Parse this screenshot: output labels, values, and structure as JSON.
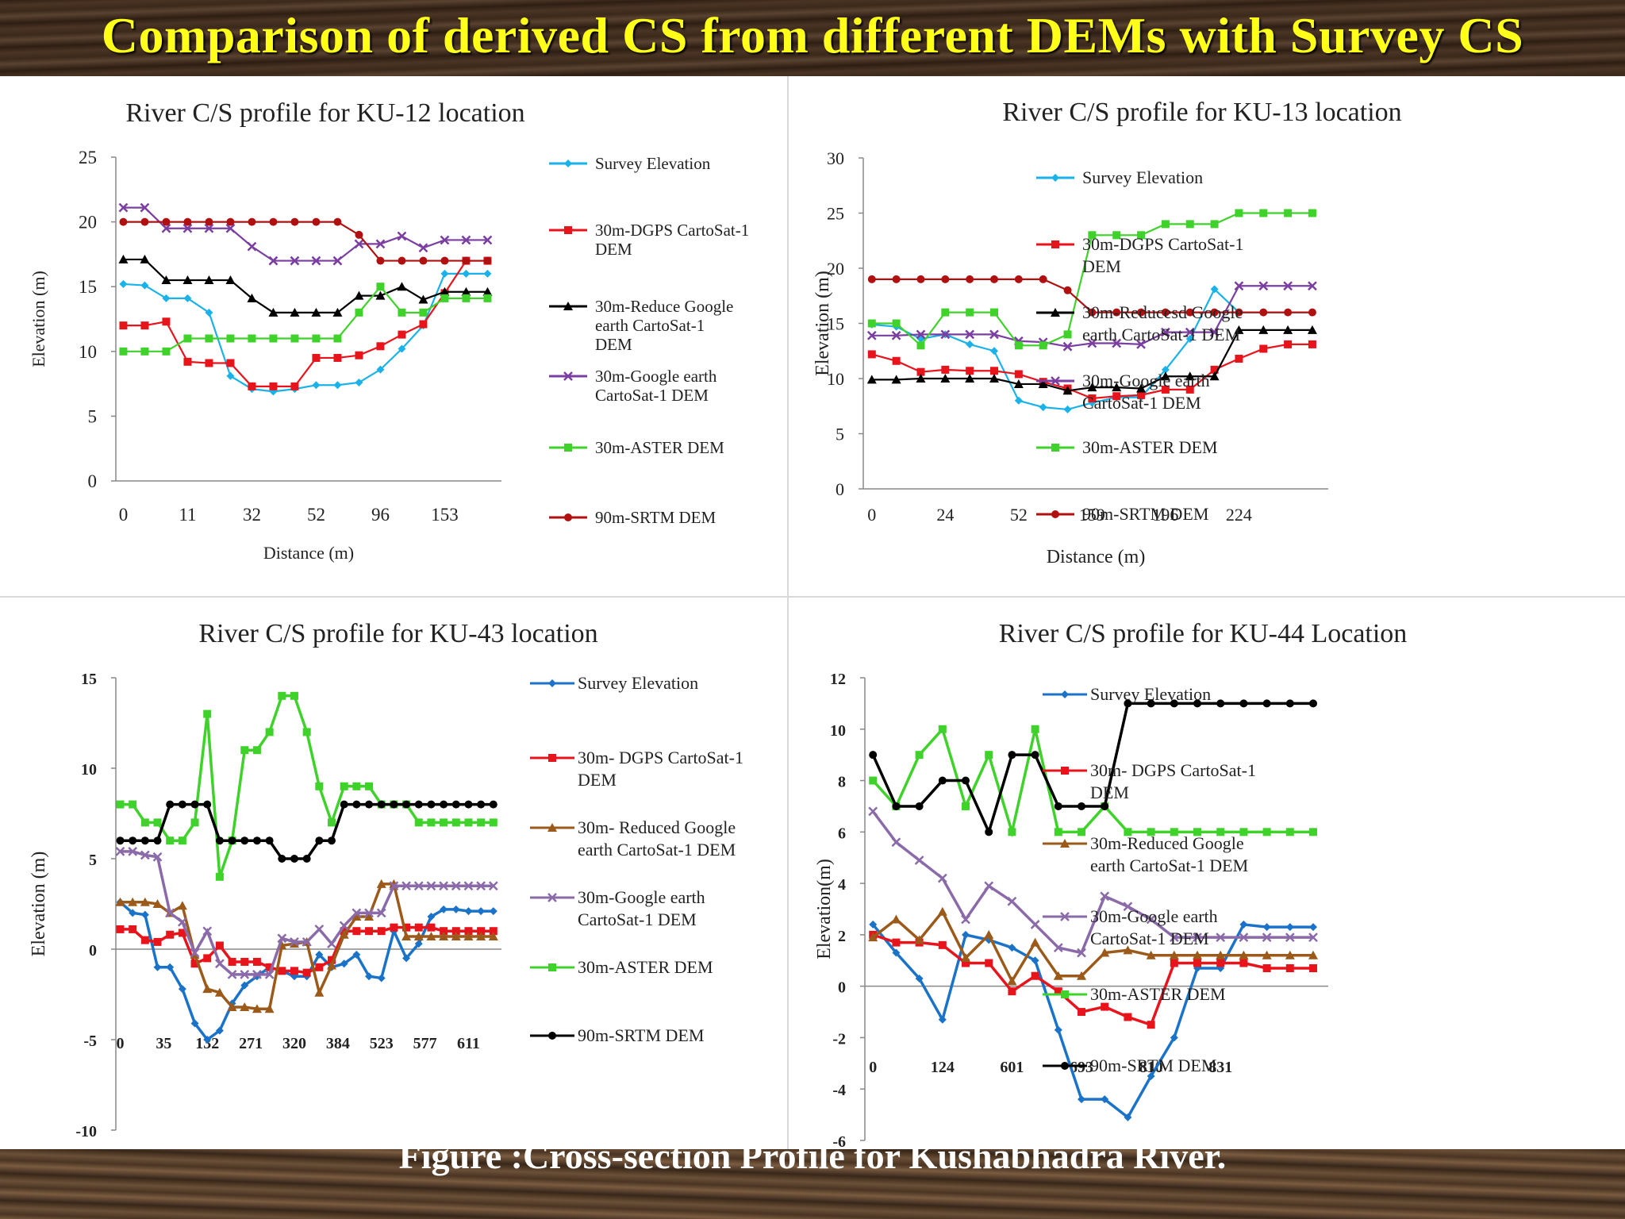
{
  "slide_title": "Comparison of derived CS from different DEMs with Survey CS",
  "caption": "Figure :Cross-section Profile  for Kushabhadra River.",
  "colors": {
    "title": "#ffff1a",
    "background": "#3a2a1e"
  },
  "chart_data": [
    {
      "type": "line",
      "title": "River C/S profile for KU-12 location",
      "xlabel": "Distance (m)",
      "ylabel": "Elevation (m)",
      "ylim": [
        0,
        25
      ],
      "yticks": [
        0,
        5,
        10,
        15,
        20,
        25
      ],
      "n_points": 18,
      "x_tick_labels": [
        {
          "i": 0,
          "label": "0"
        },
        {
          "i": 3,
          "label": "11"
        },
        {
          "i": 6,
          "label": "32"
        },
        {
          "i": 9,
          "label": "52"
        },
        {
          "i": 12,
          "label": "96"
        },
        {
          "i": 15,
          "label": "153"
        }
      ],
      "grid": false,
      "legend_position": "right",
      "series": [
        {
          "name": "Survey Elevation",
          "color": "#1ab2e8",
          "marker": "diamond",
          "values": [
            15.2,
            15.1,
            14.1,
            14.1,
            13.0,
            8.1,
            7.1,
            6.9,
            7.1,
            7.4,
            7.4,
            7.6,
            8.6,
            10.2,
            12.0,
            16.0,
            16.0,
            16.0
          ]
        },
        {
          "name": "30m-DGPS CartoSat-1 DEM",
          "color": "#e8141c",
          "marker": "square",
          "values": [
            12.0,
            12.0,
            12.3,
            9.2,
            9.1,
            9.1,
            7.3,
            7.3,
            7.3,
            9.5,
            9.5,
            9.7,
            10.4,
            11.3,
            12.1,
            14.5,
            17.0,
            17.0
          ]
        },
        {
          "name": "30m-Reduce Google earth CartoSat-1 DEM",
          "color": "#000000",
          "marker": "triangle",
          "values": [
            17.1,
            17.1,
            15.5,
            15.5,
            15.5,
            15.5,
            14.1,
            13.0,
            13.0,
            13.0,
            13.0,
            14.3,
            14.3,
            15.0,
            14.0,
            14.6,
            14.6,
            14.6
          ]
        },
        {
          "name": "30m-Google earth CartoSat-1 DEM",
          "color": "#7a3fa0",
          "marker": "x",
          "values": [
            21.1,
            21.1,
            19.5,
            19.5,
            19.5,
            19.5,
            18.1,
            17.0,
            17.0,
            17.0,
            17.0,
            18.3,
            18.3,
            18.9,
            18.0,
            18.6,
            18.6,
            18.6
          ]
        },
        {
          "name": "30m-ASTER DEM",
          "color": "#3fd22a",
          "marker": "square",
          "values": [
            10.0,
            10.0,
            10.0,
            11.0,
            11.0,
            11.0,
            11.0,
            11.0,
            11.0,
            11.0,
            11.0,
            13.0,
            15.0,
            13.0,
            13.0,
            14.1,
            14.1,
            14.1
          ]
        },
        {
          "name": "90m-SRTM DEM",
          "color": "#b01010",
          "marker": "circle",
          "values": [
            20.0,
            20.0,
            20.0,
            20.0,
            20.0,
            20.0,
            20.0,
            20.0,
            20.0,
            20.0,
            20.0,
            19.0,
            17.0,
            17.0,
            17.0,
            17.0,
            17.0,
            17.0
          ]
        }
      ]
    },
    {
      "type": "line",
      "title": "River C/S profile for KU-13 location",
      "xlabel": "Distance (m)",
      "ylabel": "Elevation (m)",
      "ylim": [
        0,
        30
      ],
      "yticks": [
        0,
        5,
        10,
        15,
        20,
        25,
        30
      ],
      "n_points": 19,
      "x_tick_labels": [
        {
          "i": 0,
          "label": "0"
        },
        {
          "i": 3,
          "label": "24"
        },
        {
          "i": 6,
          "label": "52"
        },
        {
          "i": 9,
          "label": "159"
        },
        {
          "i": 12,
          "label": "196"
        },
        {
          "i": 15,
          "label": "224"
        }
      ],
      "grid": false,
      "legend_position": "right",
      "series": [
        {
          "name": "Survey Elevation",
          "color": "#1ab2e8",
          "marker": "diamond",
          "values": [
            14.9,
            14.7,
            13.6,
            14.0,
            13.1,
            12.5,
            8.0,
            7.4,
            7.2,
            7.8,
            8.3,
            8.3,
            10.8,
            13.6,
            18.1,
            16.0,
            16.0,
            16.0,
            16.0
          ]
        },
        {
          "name": "30m-DGPS CartoSat-1 DEM",
          "color": "#e8141c",
          "marker": "square",
          "values": [
            12.2,
            11.6,
            10.6,
            10.8,
            10.7,
            10.7,
            10.4,
            9.7,
            9.1,
            8.2,
            8.4,
            8.5,
            9.0,
            9.0,
            10.8,
            11.8,
            12.7,
            13.1,
            13.1
          ]
        },
        {
          "name": "30m-Reducesd Google earth CartoSat-1 DEM",
          "color": "#000000",
          "marker": "triangle",
          "values": [
            9.9,
            9.9,
            10.0,
            10.0,
            10.0,
            10.0,
            9.5,
            9.5,
            8.9,
            9.2,
            9.2,
            9.1,
            10.2,
            10.2,
            10.2,
            14.4,
            14.4,
            14.4,
            14.4
          ]
        },
        {
          "name": "30m-Google earth CartoSat-1 DEM",
          "color": "#7a3fa0",
          "marker": "x",
          "values": [
            13.9,
            13.9,
            14.0,
            14.0,
            14.0,
            14.0,
            13.4,
            13.3,
            12.9,
            13.2,
            13.2,
            13.1,
            14.2,
            14.2,
            14.2,
            18.4,
            18.4,
            18.4,
            18.4
          ]
        },
        {
          "name": "30m-ASTER DEM",
          "color": "#3fd22a",
          "marker": "square",
          "values": [
            15.0,
            15.0,
            13.0,
            16.0,
            16.0,
            16.0,
            13.0,
            13.0,
            14.0,
            23.0,
            23.0,
            23.0,
            24.0,
            24.0,
            24.0,
            25.0,
            25.0,
            25.0,
            25.0
          ]
        },
        {
          "name": "90m-SRTM DEM",
          "color": "#b01010",
          "marker": "circle",
          "values": [
            19.0,
            19.0,
            19.0,
            19.0,
            19.0,
            19.0,
            19.0,
            19.0,
            18.0,
            16.0,
            16.0,
            16.0,
            16.0,
            16.0,
            16.0,
            16.0,
            16.0,
            16.0,
            16.0
          ]
        }
      ]
    },
    {
      "type": "line",
      "title": "River C/S profile for KU-43 location",
      "xlabel": "",
      "ylabel": "Elevation (m)",
      "ylim": [
        -10,
        15
      ],
      "yticks": [
        -10,
        -5,
        0,
        5,
        10,
        15
      ],
      "n_points": 31,
      "x_tick_labels": [
        {
          "i": 0,
          "label": "0"
        },
        {
          "i": 3.5,
          "label": "35"
        },
        {
          "i": 7,
          "label": "132"
        },
        {
          "i": 10.5,
          "label": "271"
        },
        {
          "i": 14,
          "label": "320"
        },
        {
          "i": 17.5,
          "label": "384"
        },
        {
          "i": 21,
          "label": "523"
        },
        {
          "i": 24.5,
          "label": "577"
        },
        {
          "i": 28,
          "label": "611"
        }
      ],
      "grid": false,
      "legend_position": "right",
      "series": [
        {
          "name": "Survey Elevation",
          "color": "#1a73c8",
          "marker": "diamond",
          "values": [
            2.6,
            2.0,
            1.9,
            -1.0,
            -1.0,
            -2.2,
            -4.1,
            -5.0,
            -4.5,
            -3.0,
            -2.0,
            -1.5,
            -1.0,
            -1.2,
            -1.5,
            -1.5,
            -0.3,
            -1.0,
            -0.8,
            -0.3,
            -1.5,
            -1.6,
            1.0,
            -0.5,
            0.3,
            1.8,
            2.2,
            2.2,
            2.1,
            2.1,
            2.1
          ]
        },
        {
          "name": "30m- DGPS CartoSat-1 DEM",
          "color": "#e8141c",
          "marker": "square",
          "values": [
            1.1,
            1.1,
            0.5,
            0.4,
            0.8,
            0.9,
            -0.8,
            -0.5,
            0.2,
            -0.7,
            -0.7,
            -0.7,
            -1.0,
            -1.2,
            -1.2,
            -1.3,
            -1.0,
            -0.6,
            1.0,
            1.0,
            1.0,
            1.0,
            1.2,
            1.2,
            1.2,
            1.2,
            1.0,
            1.0,
            1.0,
            1.0,
            1.0
          ]
        },
        {
          "name": "30m- Reduced Google earth CartoSat-1 DEM",
          "color": "#9c5a1a",
          "marker": "triangle",
          "values": [
            2.6,
            2.6,
            2.6,
            2.5,
            2.0,
            2.4,
            -0.3,
            -2.2,
            -2.4,
            -3.2,
            -3.2,
            -3.3,
            -3.3,
            0.2,
            0.3,
            0.4,
            -2.4,
            -0.9,
            0.8,
            1.8,
            1.8,
            3.6,
            3.6,
            0.7,
            0.7,
            0.7,
            0.7,
            0.7,
            0.7,
            0.7,
            0.7
          ]
        },
        {
          "name": "30m-Google earth CartoSat-1 DEM",
          "color": "#8a6aa8",
          "marker": "x",
          "values": [
            5.4,
            5.4,
            5.2,
            5.1,
            2.0,
            1.5,
            -0.2,
            1.0,
            -0.8,
            -1.4,
            -1.4,
            -1.4,
            -1.4,
            0.6,
            0.4,
            0.4,
            1.1,
            0.3,
            1.3,
            2.0,
            2.0,
            2.0,
            3.5,
            3.5,
            3.5,
            3.5,
            3.5,
            3.5,
            3.5,
            3.5,
            3.5
          ]
        },
        {
          "name": "30m-ASTER DEM",
          "color": "#3fd22a",
          "marker": "square",
          "values": [
            8.0,
            8.0,
            7.0,
            7.0,
            6.0,
            6.0,
            7.0,
            13.0,
            4.0,
            6.0,
            11.0,
            11.0,
            12.0,
            14.0,
            14.0,
            12.0,
            9.0,
            7.0,
            9.0,
            9.0,
            9.0,
            8.0,
            8.0,
            8.0,
            7.0,
            7.0,
            7.0,
            7.0,
            7.0,
            7.0,
            7.0
          ]
        },
        {
          "name": "90m-SRTM DEM",
          "color": "#000000",
          "marker": "circle",
          "values": [
            6.0,
            6.0,
            6.0,
            6.0,
            8.0,
            8.0,
            8.0,
            8.0,
            6.0,
            6.0,
            6.0,
            6.0,
            6.0,
            5.0,
            5.0,
            5.0,
            6.0,
            6.0,
            8.0,
            8.0,
            8.0,
            8.0,
            8.0,
            8.0,
            8.0,
            8.0,
            8.0,
            8.0,
            8.0,
            8.0,
            8.0
          ]
        }
      ]
    },
    {
      "type": "line",
      "title": "River C/S profile for KU-44 Location",
      "xlabel": "",
      "ylabel": "Elevation(m)",
      "ylim": [
        -6,
        12
      ],
      "yticks": [
        -6,
        -4,
        -2,
        0,
        2,
        4,
        6,
        8,
        10,
        12
      ],
      "n_points": 20,
      "x_tick_labels": [
        {
          "i": 0,
          "label": "0"
        },
        {
          "i": 3,
          "label": "124"
        },
        {
          "i": 6,
          "label": "601"
        },
        {
          "i": 9,
          "label": "693"
        },
        {
          "i": 12,
          "label": "810"
        },
        {
          "i": 15,
          "label": "831"
        }
      ],
      "grid": false,
      "legend_position": "right",
      "series": [
        {
          "name": "Survey Elevation",
          "color": "#1a73c8",
          "marker": "diamond",
          "values": [
            2.4,
            1.3,
            0.3,
            -1.3,
            2.0,
            1.8,
            1.5,
            1.0,
            -1.7,
            -4.4,
            -4.4,
            -5.1,
            -3.5,
            -2.0,
            0.7,
            0.7,
            2.4,
            2.3,
            2.3,
            2.3
          ]
        },
        {
          "name": "30m- DGPS CartoSat-1 DEM",
          "color": "#e8141c",
          "marker": "square",
          "values": [
            2.0,
            1.7,
            1.7,
            1.6,
            0.9,
            0.9,
            -0.2,
            0.4,
            -0.2,
            -1.0,
            -0.8,
            -1.2,
            -1.5,
            0.9,
            0.9,
            0.9,
            0.9,
            0.7,
            0.7,
            0.7
          ]
        },
        {
          "name": "30m-Reduced Google earth CartoSat-1 DEM",
          "color": "#9c5a1a",
          "marker": "triangle",
          "values": [
            1.9,
            2.6,
            1.8,
            2.9,
            1.1,
            2.0,
            0.2,
            1.7,
            0.4,
            0.4,
            1.3,
            1.4,
            1.2,
            1.2,
            1.2,
            1.2,
            1.2,
            1.2,
            1.2,
            1.2
          ]
        },
        {
          "name": "30m-Google earth CartoSat-1 DEM",
          "color": "#8a6aa8",
          "marker": "x",
          "values": [
            6.8,
            5.6,
            4.9,
            4.2,
            2.6,
            3.9,
            3.3,
            2.4,
            1.5,
            1.3,
            3.5,
            3.1,
            2.6,
            1.9,
            1.9,
            1.9,
            1.9,
            1.9,
            1.9,
            1.9
          ]
        },
        {
          "name": "30m-ASTER DEM",
          "color": "#3fd22a",
          "marker": "square",
          "values": [
            8.0,
            7.0,
            9.0,
            10.0,
            7.0,
            9.0,
            6.0,
            10.0,
            6.0,
            6.0,
            7.0,
            6.0,
            6.0,
            6.0,
            6.0,
            6.0,
            6.0,
            6.0,
            6.0,
            6.0
          ]
        },
        {
          "name": "90m-SRTM DEM",
          "color": "#000000",
          "marker": "circle",
          "values": [
            9.0,
            7.0,
            7.0,
            8.0,
            8.0,
            6.0,
            9.0,
            9.0,
            7.0,
            7.0,
            7.0,
            11.0,
            11.0,
            11.0,
            11.0,
            11.0,
            11.0,
            11.0,
            11.0,
            11.0
          ]
        }
      ]
    }
  ]
}
